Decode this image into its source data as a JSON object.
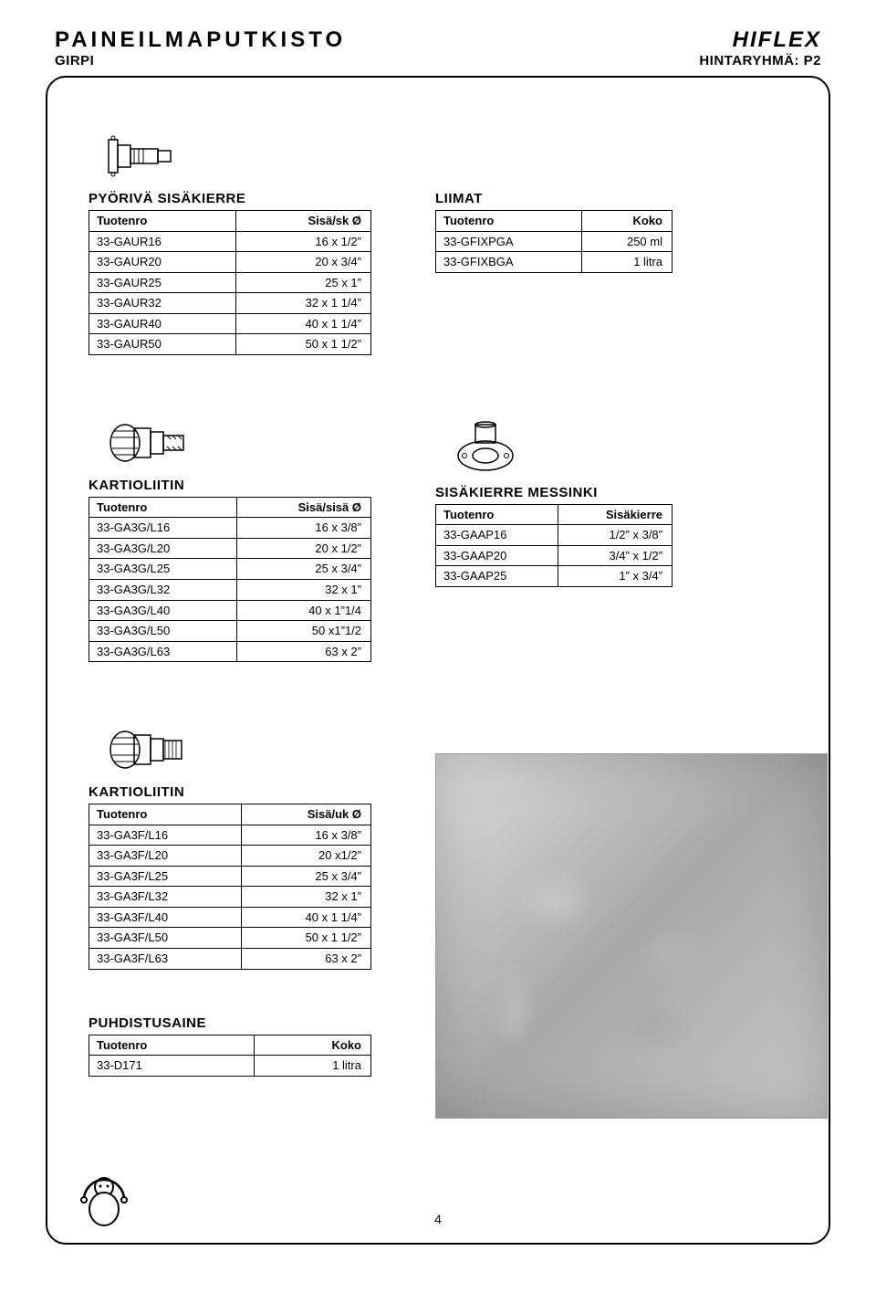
{
  "header": {
    "title_main": "PAINEILMAPUTKISTO",
    "title_sub": "GIRPI",
    "brand": "HIFLEX",
    "price_group": "HINTARYHMÄ: P2"
  },
  "table1": {
    "title": "PYÖRIVÄ SISÄKIERRE",
    "col1": "Tuotenro",
    "col2": "Sisä/sk Ø",
    "rows": [
      [
        "33-GAUR16",
        "16 x 1/2”"
      ],
      [
        "33-GAUR20",
        "20 x 3/4”"
      ],
      [
        "33-GAUR25",
        "25 x 1”"
      ],
      [
        "33-GAUR32",
        "32 x 1 1/4”"
      ],
      [
        "33-GAUR40",
        "40 x 1 1/4”"
      ],
      [
        "33-GAUR50",
        "50 x 1 1/2”"
      ]
    ]
  },
  "table2": {
    "title": "LIIMAT",
    "col1": "Tuotenro",
    "col2": "Koko",
    "rows": [
      [
        "33-GFIXPGA",
        "250 ml"
      ],
      [
        "33-GFIXBGA",
        "1 litra"
      ]
    ]
  },
  "table3": {
    "title": "KARTIOLIITIN",
    "col1": "Tuotenro",
    "col2": "Sisä/sisä Ø",
    "rows": [
      [
        "33-GA3G/L16",
        "16 x 3/8”"
      ],
      [
        "33-GA3G/L20",
        "20 x 1/2”"
      ],
      [
        "33-GA3G/L25",
        "25 x 3/4”"
      ],
      [
        "33-GA3G/L32",
        "32 x 1”"
      ],
      [
        "33-GA3G/L40",
        "40 x 1”1/4"
      ],
      [
        "33-GA3G/L50",
        "50 x1”1/2"
      ],
      [
        "33-GA3G/L63",
        "63 x 2”"
      ]
    ]
  },
  "table4": {
    "title": "SISÄKIERRE MESSINKI",
    "col1": "Tuotenro",
    "col2": "Sisäkierre",
    "rows": [
      [
        "33-GAAP16",
        "1/2” x 3/8”"
      ],
      [
        "33-GAAP20",
        "3/4” x 1/2”"
      ],
      [
        "33-GAAP25",
        "1” x 3/4”"
      ]
    ]
  },
  "table5": {
    "title": "KARTIOLIITIN",
    "col1": "Tuotenro",
    "col2": "Sisä/uk Ø",
    "rows": [
      [
        "33-GA3F/L16",
        "16 x 3/8”"
      ],
      [
        "33-GA3F/L20",
        "20 x1/2”"
      ],
      [
        "33-GA3F/L25",
        "25 x 3/4”"
      ],
      [
        "33-GA3F/L32",
        "32 x 1”"
      ],
      [
        "33-GA3F/L40",
        "40 x 1 1/4”"
      ],
      [
        "33-GA3F/L50",
        "50 x 1 1/2”"
      ],
      [
        "33-GA3F/L63",
        "63 x 2”"
      ]
    ]
  },
  "table6": {
    "title": "PUHDISTUSAINE",
    "col1": "Tuotenro",
    "col2": "Koko",
    "rows": [
      [
        "33-D171",
        "1 litra"
      ]
    ]
  },
  "page_number": "4"
}
